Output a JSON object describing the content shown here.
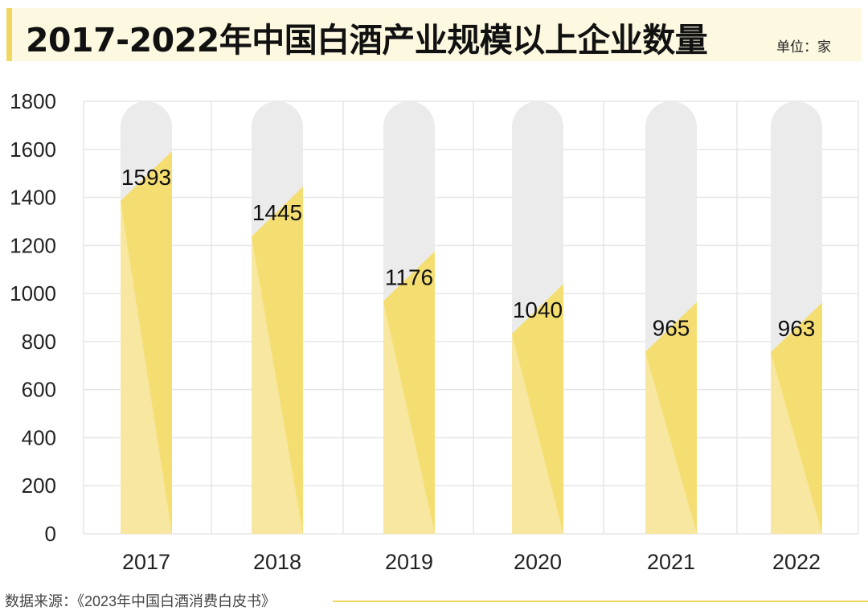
{
  "header": {
    "title": "2017-2022年中国白酒产业规模以上企业数量",
    "unit": "单位：家"
  },
  "footer": {
    "source": "数据来源：《2023年中国白酒消费白皮书》"
  },
  "colors": {
    "accent": "#f0d762",
    "bar_main": "#f5de71",
    "bar_light": "#f8e9a8",
    "track": "#ebebec",
    "grid": "#e6e6e6",
    "title_bg": "#fdf8e0"
  },
  "chart_data": {
    "type": "bar",
    "categories": [
      "2017",
      "2018",
      "2019",
      "2020",
      "2021",
      "2022"
    ],
    "values": [
      1593,
      1445,
      1176,
      1040,
      965,
      963
    ],
    "ylim": [
      0,
      1800
    ],
    "yticks": [
      0,
      200,
      400,
      600,
      800,
      1000,
      1200,
      1400,
      1600,
      1800
    ],
    "grid": true,
    "legend": "none",
    "title": "2017-2022年中国白酒产业规模以上企业数量",
    "unit": "单位：家",
    "xlabel": "",
    "ylabel": ""
  }
}
